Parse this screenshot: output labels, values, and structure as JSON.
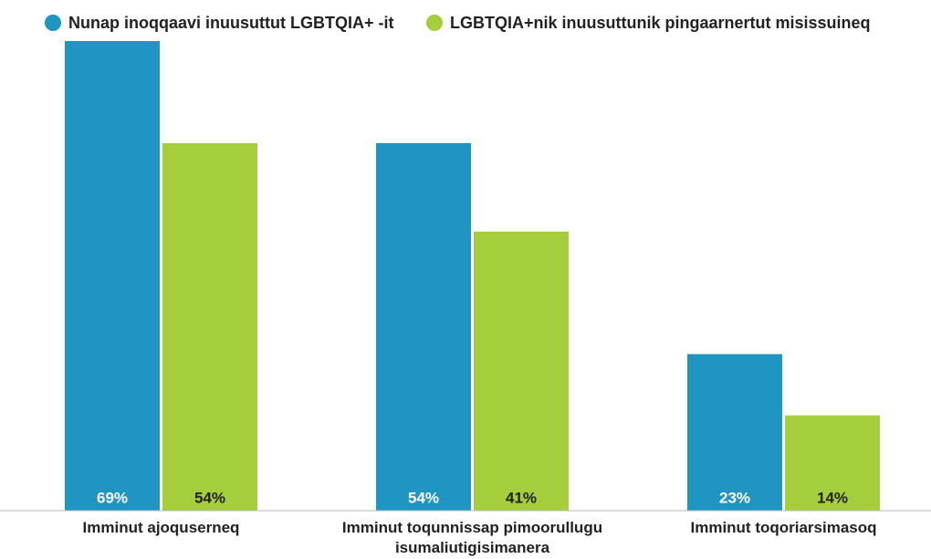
{
  "chart_data": {
    "type": "bar",
    "categories": [
      "Imminut ajoquserneq",
      "Imminut toqunnissap pimoorullugu isumaliutigisimanera",
      "Imminut toqoriarsimasoq"
    ],
    "series": [
      {
        "name": "Nunap inoqqaavi inuusuttut LGBTQIA+ -it",
        "color": "#1f96c1",
        "values": [
          69,
          54,
          23
        ],
        "value_labels": [
          "69%",
          "54%",
          "23%"
        ]
      },
      {
        "name": "LGBTQIA+nik inuusuttunik pingaarnertut misissuineq",
        "color": "#a4ce3c",
        "values": [
          54,
          41,
          14
        ],
        "value_labels": [
          "54%",
          "41%",
          "14%"
        ]
      }
    ],
    "ylim": [
      0,
      69
    ],
    "legend": "top"
  }
}
